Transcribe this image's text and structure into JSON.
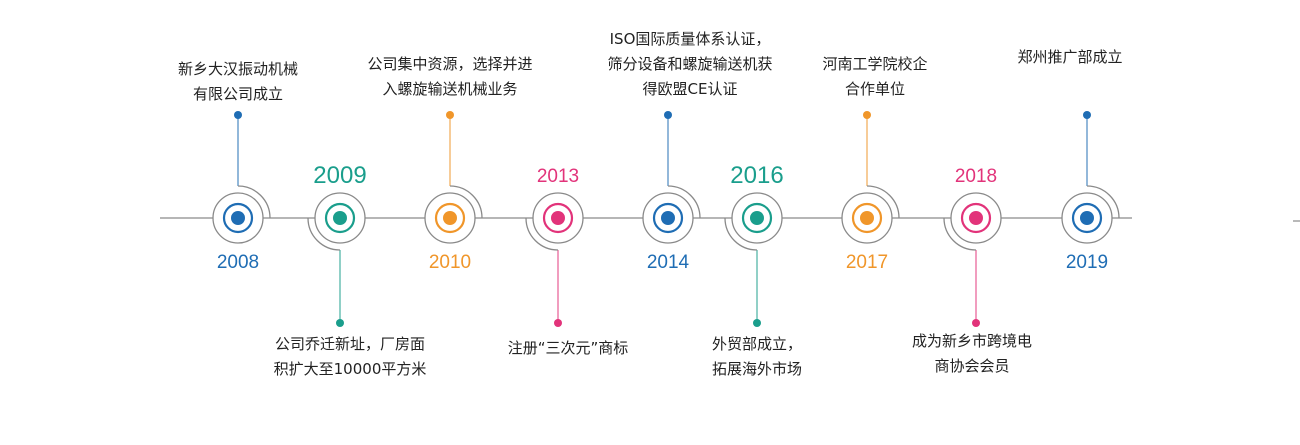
{
  "colors": {
    "blue": "#1f6db4",
    "teal": "#1a9e8c",
    "orange": "#f0962a",
    "pink": "#e2337a",
    "gray": "#8a8a8a"
  },
  "events": [
    {
      "year": "2008",
      "color": "#1f6db4",
      "dir": "up",
      "lines": [
        "新乡大汉振动机械",
        "有限公司成立"
      ]
    },
    {
      "year": "2009",
      "color": "#1a9e8c",
      "dir": "down",
      "lines": [
        "公司乔迁新址，厂房面",
        "积扩大至10000平方米"
      ]
    },
    {
      "year": "2010",
      "color": "#f0962a",
      "dir": "up",
      "lines": [
        "公司集中资源，选择并进",
        "入螺旋输送机械业务"
      ]
    },
    {
      "year": "2013",
      "color": "#e2337a",
      "dir": "down",
      "lines": [
        "注册“三次元”商标"
      ]
    },
    {
      "year": "2014",
      "color": "#1f6db4",
      "dir": "up",
      "lines": [
        "ISO国际质量体系认证，",
        "筛分设备和螺旋输送机获",
        "得欧盟CE认证"
      ]
    },
    {
      "year": "2016",
      "color": "#1a9e8c",
      "dir": "down",
      "lines": [
        "外贸部成立，",
        "拓展海外市场"
      ]
    },
    {
      "year": "2017",
      "color": "#f0962a",
      "dir": "up",
      "lines": [
        "河南工学院校企",
        "合作单位"
      ]
    },
    {
      "year": "2018",
      "color": "#e2337a",
      "dir": "down",
      "lines": [
        "成为新乡市跨境电",
        "商协会会员"
      ]
    },
    {
      "year": "2019",
      "color": "#1f6db4",
      "dir": "up",
      "lines": [
        "郑州推广部成立"
      ]
    }
  ]
}
